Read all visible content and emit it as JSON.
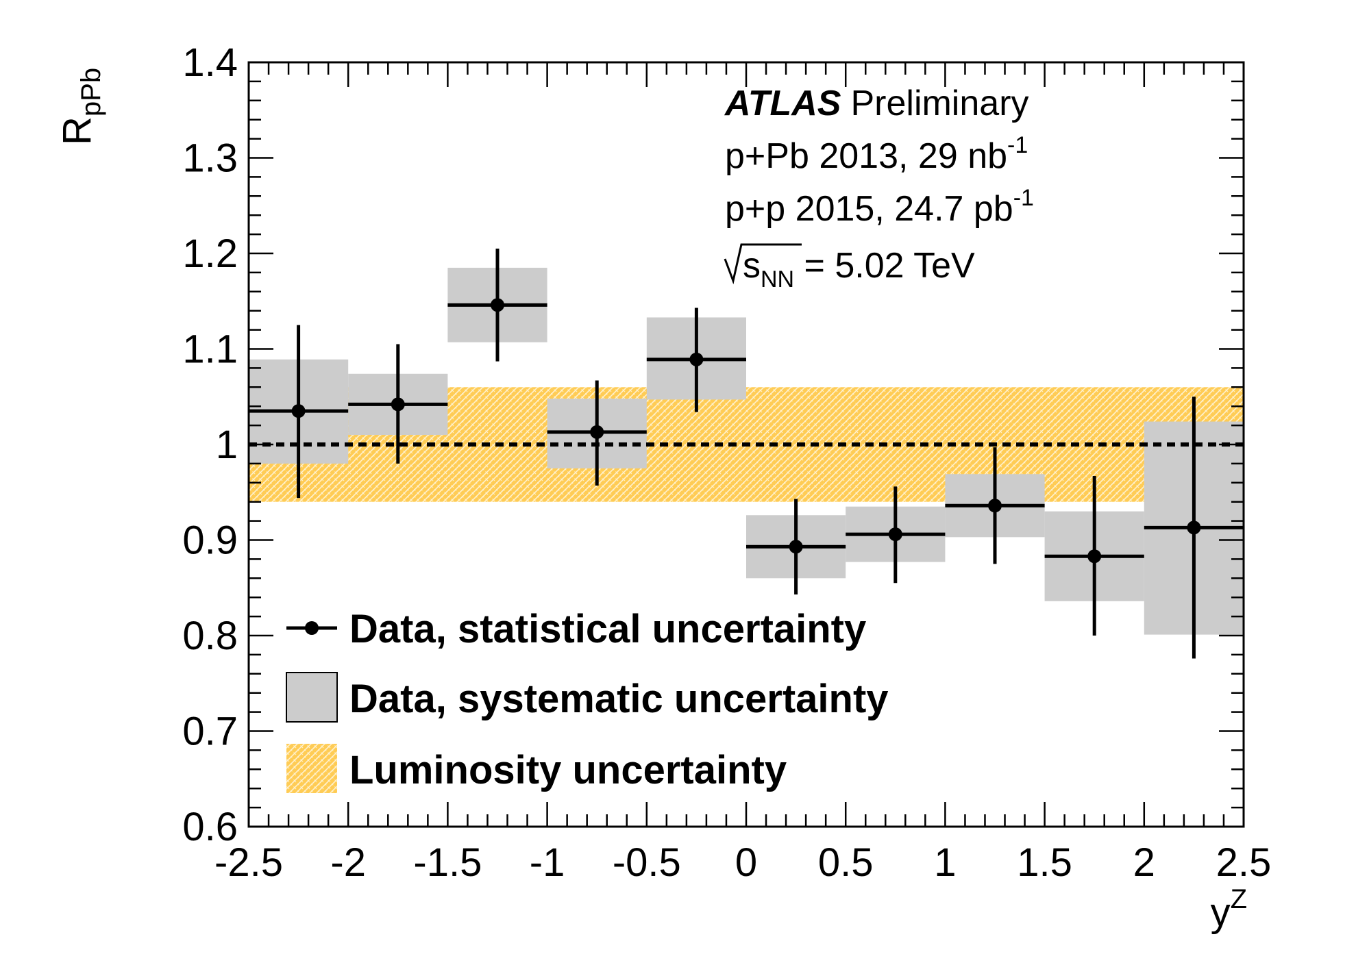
{
  "chart_data": {
    "type": "scatter",
    "title": "",
    "xlabel": "y",
    "xlabel_sup": "Z",
    "ylabel": "R",
    "ylabel_sub": "pPb",
    "xlim": [
      -2.5,
      2.5
    ],
    "ylim": [
      0.6,
      1.4
    ],
    "x_ticks": [
      -2.5,
      -2,
      -1.5,
      -1,
      -0.5,
      0,
      0.5,
      1,
      1.5,
      2,
      2.5
    ],
    "x_tick_labels": [
      "-2.5",
      "-2",
      "-1.5",
      "-1",
      "-0.5",
      "0",
      "0.5",
      "1",
      "1.5",
      "2",
      "2.5"
    ],
    "y_ticks": [
      0.6,
      0.7,
      0.8,
      0.9,
      1.0,
      1.1,
      1.2,
      1.3,
      1.4
    ],
    "y_tick_labels": [
      "0.6",
      "0.7",
      "0.8",
      "0.9",
      "1",
      "1.1",
      "1.2",
      "1.3",
      "1.4"
    ],
    "reference_line": 1.0,
    "luminosity_band": [
      0.94,
      1.06
    ],
    "points": [
      {
        "x_low": -2.5,
        "x_high": -2.0,
        "y": 1.035,
        "stat_low": 0.944,
        "stat_high": 1.125,
        "sys_low": 0.98,
        "sys_high": 1.089
      },
      {
        "x_low": -2.0,
        "x_high": -1.5,
        "y": 1.042,
        "stat_low": 0.98,
        "stat_high": 1.105,
        "sys_low": 1.01,
        "sys_high": 1.074
      },
      {
        "x_low": -1.5,
        "x_high": -1.0,
        "y": 1.146,
        "stat_low": 1.087,
        "stat_high": 1.205,
        "sys_low": 1.107,
        "sys_high": 1.185
      },
      {
        "x_low": -1.0,
        "x_high": -0.5,
        "y": 1.013,
        "stat_low": 0.957,
        "stat_high": 1.067,
        "sys_low": 0.975,
        "sys_high": 1.048
      },
      {
        "x_low": -0.5,
        "x_high": 0.0,
        "y": 1.089,
        "stat_low": 1.034,
        "stat_high": 1.143,
        "sys_low": 1.047,
        "sys_high": 1.133
      },
      {
        "x_low": 0.0,
        "x_high": 0.5,
        "y": 0.893,
        "stat_low": 0.843,
        "stat_high": 0.943,
        "sys_low": 0.86,
        "sys_high": 0.926
      },
      {
        "x_low": 0.5,
        "x_high": 1.0,
        "y": 0.906,
        "stat_low": 0.855,
        "stat_high": 0.956,
        "sys_low": 0.877,
        "sys_high": 0.935
      },
      {
        "x_low": 1.0,
        "x_high": 1.5,
        "y": 0.936,
        "stat_low": 0.875,
        "stat_high": 0.997,
        "sys_low": 0.903,
        "sys_high": 0.969
      },
      {
        "x_low": 1.5,
        "x_high": 2.0,
        "y": 0.883,
        "stat_low": 0.8,
        "stat_high": 0.967,
        "sys_low": 0.836,
        "sys_high": 0.93
      },
      {
        "x_low": 2.0,
        "x_high": 2.5,
        "y": 0.913,
        "stat_low": 0.776,
        "stat_high": 1.05,
        "sys_low": 0.801,
        "sys_high": 1.024
      }
    ],
    "annotations": {
      "experiment": "ATLAS",
      "status": "Preliminary",
      "line1": "p+Pb 2013, 29 nb",
      "line1_sup": "-1",
      "line2": "p+p 2015, 24.7 pb",
      "line2_sup": "-1",
      "line3_sqrt": "s",
      "line3_sub": "NN",
      "line3_rest": " = 5.02 TeV"
    },
    "legend": {
      "position": "bottom-left",
      "entries": [
        "Data, statistical uncertainty",
        "Data, systematic uncertainty",
        "Luminosity uncertainty"
      ]
    },
    "colors": {
      "points": "#000000",
      "systematic": "#cccccc",
      "luminosity": "#ffcc55",
      "luminosity_hatch": "#fff1cc"
    }
  }
}
